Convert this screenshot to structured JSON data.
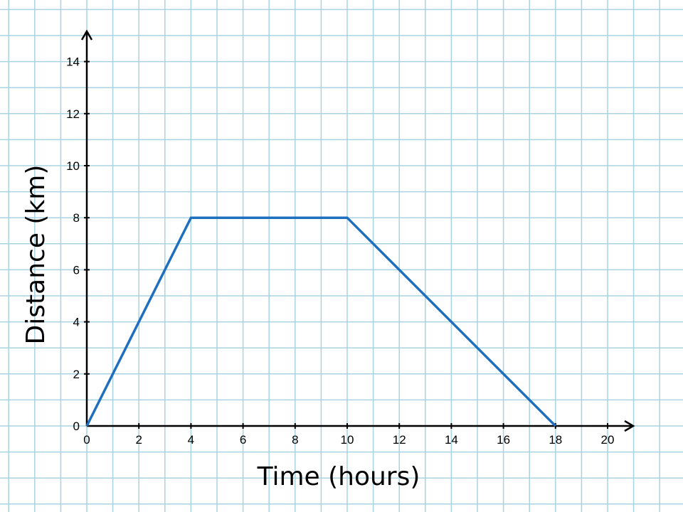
{
  "chart_data": {
    "type": "line",
    "title": "",
    "xlabel": "Time (hours)",
    "ylabel": "Distance (km)",
    "xlim": [
      0,
      20
    ],
    "ylim": [
      0,
      14
    ],
    "x_ticks": [
      "0",
      "2",
      "4",
      "6",
      "8",
      "10",
      "12",
      "14",
      "16",
      "18",
      "20"
    ],
    "y_ticks": [
      "0",
      "2",
      "4",
      "6",
      "8",
      "10",
      "12",
      "14"
    ],
    "grid": true,
    "background": "graph-paper",
    "series": [
      {
        "x": [
          0,
          4,
          10,
          18
        ],
        "y": [
          0,
          8,
          8,
          0
        ],
        "color": "#1f6fbf"
      }
    ]
  },
  "colors": {
    "grid": "#a9d3e0",
    "axis": "#000000",
    "line": "#1f6fbf"
  }
}
